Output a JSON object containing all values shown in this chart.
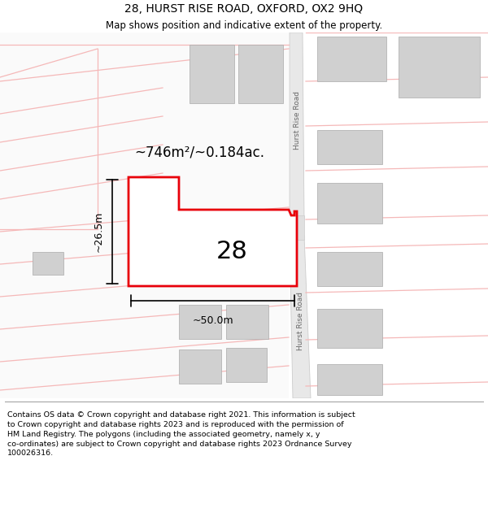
{
  "title": "28, HURST RISE ROAD, OXFORD, OX2 9HQ",
  "subtitle": "Map shows position and indicative extent of the property.",
  "footer": "Contains OS data © Crown copyright and database right 2021. This information is subject\nto Crown copyright and database rights 2023 and is reproduced with the permission of\nHM Land Registry. The polygons (including the associated geometry, namely x, y\nco-ordinates) are subject to Crown copyright and database rights 2023 Ordnance Survey\n100026316.",
  "area_label": "~746m²/~0.184ac.",
  "number_label": "28",
  "width_label": "~50.0m",
  "height_label": "~26.5m",
  "road_label_top": "Hurst Rise Road",
  "road_label_bottom": "Hurst Rise Road",
  "bg_color": "#ffffff",
  "map_bg": "#ffffff",
  "plot_color": "#e8000a",
  "light_pink": "#f5b8b8",
  "gray_rect": "#d0d0d0",
  "road_gray": "#e0e0e0",
  "title_fontsize": 10,
  "subtitle_fontsize": 8.5,
  "footer_fontsize": 6.8
}
